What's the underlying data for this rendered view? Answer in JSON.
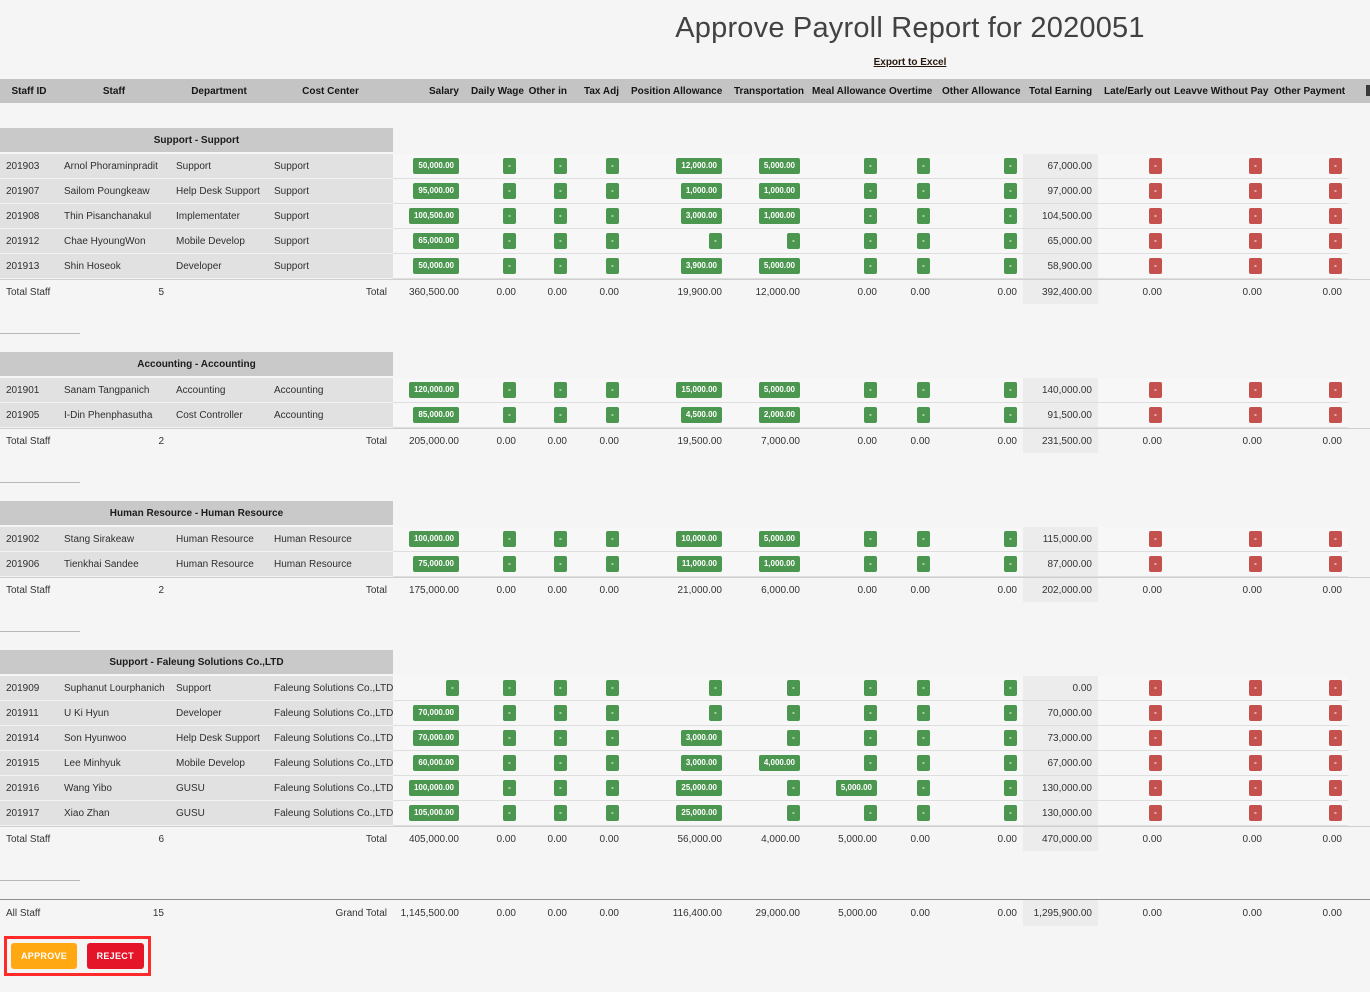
{
  "page": {
    "title": "Approve Payroll Report for 2020051",
    "export_link": "Export to Excel"
  },
  "ui": {
    "empty_button_label": "-",
    "total_staff_label": "Total Staff",
    "all_staff_label": "All Staff",
    "total_label": "Total",
    "grand_total_label": "Grand Total"
  },
  "table": {
    "columns": [
      "Staff ID",
      "Staff",
      "Department",
      "Cost Center",
      "Salary",
      "Daily Wage",
      "Other in",
      "Tax Adj",
      "Position Allowance",
      "Transportation",
      "Meal Allowance",
      "Overtime",
      "Other Allowance",
      "Total Earning",
      "Late/Early out",
      "Leavve Without Pay",
      "Other Payment"
    ],
    "groups": [
      {
        "name": "Support - Support",
        "rows": [
          {
            "id": "201903",
            "name": "Arnol Phoraminpradit",
            "dept": "Support",
            "cost_center": "Support",
            "earnings": [
              "50,000.00",
              "",
              "",
              "",
              "12,000.00",
              "5,000.00",
              "",
              "",
              ""
            ],
            "total_earning": "67,000.00"
          },
          {
            "id": "201907",
            "name": "Sailom Poungkeaw",
            "dept": "Help Desk Support",
            "cost_center": "Support",
            "earnings": [
              "95,000.00",
              "",
              "",
              "",
              "1,000.00",
              "1,000.00",
              "",
              "",
              ""
            ],
            "total_earning": "97,000.00"
          },
          {
            "id": "201908",
            "name": "Thin Pisanchanakul",
            "dept": "Implementater",
            "cost_center": "Support",
            "earnings": [
              "100,500.00",
              "",
              "",
              "",
              "3,000.00",
              "1,000.00",
              "",
              "",
              ""
            ],
            "total_earning": "104,500.00"
          },
          {
            "id": "201912",
            "name": "Chae HyoungWon",
            "dept": "Mobile Develop",
            "cost_center": "Support",
            "earnings": [
              "65,000.00",
              "",
              "",
              "",
              "",
              "",
              "",
              "",
              ""
            ],
            "total_earning": "65,000.00"
          },
          {
            "id": "201913",
            "name": "Shin Hoseok",
            "dept": "Developer",
            "cost_center": "Support",
            "earnings": [
              "50,000.00",
              "",
              "",
              "",
              "3,900.00",
              "5,000.00",
              "",
              "",
              ""
            ],
            "total_earning": "58,900.00"
          }
        ],
        "staff_count": "5",
        "totals": [
          "360,500.00",
          "0.00",
          "0.00",
          "0.00",
          "19,900.00",
          "12,000.00",
          "0.00",
          "0.00",
          "0.00",
          "392,400.00",
          "0.00",
          "0.00",
          "0.00"
        ]
      },
      {
        "name": "Accounting - Accounting",
        "rows": [
          {
            "id": "201901",
            "name": "Sanam Tangpanich",
            "dept": "Accounting",
            "cost_center": "Accounting",
            "earnings": [
              "120,000.00",
              "",
              "",
              "",
              "15,000.00",
              "5,000.00",
              "",
              "",
              ""
            ],
            "total_earning": "140,000.00"
          },
          {
            "id": "201905",
            "name": "I-Din Phenphasutha",
            "dept": "Cost Controller",
            "cost_center": "Accounting",
            "earnings": [
              "85,000.00",
              "",
              "",
              "",
              "4,500.00",
              "2,000.00",
              "",
              "",
              ""
            ],
            "total_earning": "91,500.00"
          }
        ],
        "staff_count": "2",
        "totals": [
          "205,000.00",
          "0.00",
          "0.00",
          "0.00",
          "19,500.00",
          "7,000.00",
          "0.00",
          "0.00",
          "0.00",
          "231,500.00",
          "0.00",
          "0.00",
          "0.00"
        ]
      },
      {
        "name": "Human Resource - Human Resource",
        "rows": [
          {
            "id": "201902",
            "name": "Stang Sirakeaw",
            "dept": "Human Resource",
            "cost_center": "Human Resource",
            "earnings": [
              "100,000.00",
              "",
              "",
              "",
              "10,000.00",
              "5,000.00",
              "",
              "",
              ""
            ],
            "total_earning": "115,000.00"
          },
          {
            "id": "201906",
            "name": "Tienkhai Sandee",
            "dept": "Human Resource",
            "cost_center": "Human Resource",
            "earnings": [
              "75,000.00",
              "",
              "",
              "",
              "11,000.00",
              "1,000.00",
              "",
              "",
              ""
            ],
            "total_earning": "87,000.00"
          }
        ],
        "staff_count": "2",
        "totals": [
          "175,000.00",
          "0.00",
          "0.00",
          "0.00",
          "21,000.00",
          "6,000.00",
          "0.00",
          "0.00",
          "0.00",
          "202,000.00",
          "0.00",
          "0.00",
          "0.00"
        ]
      },
      {
        "name": "Support - Faleung Solutions Co.,LTD",
        "rows": [
          {
            "id": "201909",
            "name": "Suphanut Lourphanich",
            "dept": "Support",
            "cost_center": "Faleung Solutions Co.,LTD",
            "earnings": [
              "",
              "",
              "",
              "",
              "",
              "",
              "",
              "",
              ""
            ],
            "total_earning": "0.00"
          },
          {
            "id": "201911",
            "name": "U Ki Hyun",
            "dept": "Developer",
            "cost_center": "Faleung Solutions Co.,LTD",
            "earnings": [
              "70,000.00",
              "",
              "",
              "",
              "",
              "",
              "",
              "",
              ""
            ],
            "total_earning": "70,000.00"
          },
          {
            "id": "201914",
            "name": "Son Hyunwoo",
            "dept": "Help Desk Support",
            "cost_center": "Faleung Solutions Co.,LTD",
            "earnings": [
              "70,000.00",
              "",
              "",
              "",
              "3,000.00",
              "",
              "",
              "",
              ""
            ],
            "total_earning": "73,000.00"
          },
          {
            "id": "201915",
            "name": "Lee Minhyuk",
            "dept": "Mobile Develop",
            "cost_center": "Faleung Solutions Co.,LTD",
            "earnings": [
              "60,000.00",
              "",
              "",
              "",
              "3,000.00",
              "4,000.00",
              "",
              "",
              ""
            ],
            "total_earning": "67,000.00"
          },
          {
            "id": "201916",
            "name": "Wang Yibo",
            "dept": "GUSU",
            "cost_center": "Faleung Solutions Co.,LTD",
            "earnings": [
              "100,000.00",
              "",
              "",
              "",
              "25,000.00",
              "",
              "5,000.00",
              "",
              ""
            ],
            "total_earning": "130,000.00"
          },
          {
            "id": "201917",
            "name": "Xiao Zhan",
            "dept": "GUSU",
            "cost_center": "Faleung Solutions Co.,LTD",
            "earnings": [
              "105,000.00",
              "",
              "",
              "",
              "25,000.00",
              "",
              "",
              "",
              ""
            ],
            "total_earning": "130,000.00"
          }
        ],
        "staff_count": "6",
        "totals": [
          "405,000.00",
          "0.00",
          "0.00",
          "0.00",
          "56,000.00",
          "4,000.00",
          "5,000.00",
          "0.00",
          "0.00",
          "470,000.00",
          "0.00",
          "0.00",
          "0.00"
        ]
      }
    ],
    "grand_total": {
      "staff_count": "15",
      "totals": [
        "1,145,500.00",
        "0.00",
        "0.00",
        "0.00",
        "116,400.00",
        "29,000.00",
        "5,000.00",
        "0.00",
        "0.00",
        "1,295,900.00",
        "0.00",
        "0.00",
        "0.00"
      ]
    }
  },
  "actions": {
    "approve_label": "APPROVE",
    "reject_label": "REJECT"
  }
}
